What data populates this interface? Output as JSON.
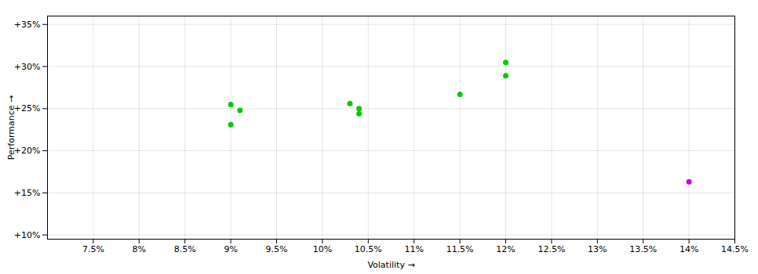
{
  "chart_data": {
    "type": "scatter",
    "xlabel": "Volatility",
    "ylabel": "Performance",
    "xlim": [
      0.07,
      0.145
    ],
    "ylim": [
      0.095,
      0.36
    ],
    "xticks": [
      {
        "value": 0.075,
        "label": "7.5%"
      },
      {
        "value": 0.08,
        "label": "8%"
      },
      {
        "value": 0.085,
        "label": "8.5%"
      },
      {
        "value": 0.09,
        "label": "9%"
      },
      {
        "value": 0.095,
        "label": "9.5%"
      },
      {
        "value": 0.1,
        "label": "10%"
      },
      {
        "value": 0.105,
        "label": "10.5%"
      },
      {
        "value": 0.11,
        "label": "11%"
      },
      {
        "value": 0.115,
        "label": "11.5%"
      },
      {
        "value": 0.12,
        "label": "12%"
      },
      {
        "value": 0.125,
        "label": "12.5%"
      },
      {
        "value": 0.13,
        "label": "13%"
      },
      {
        "value": 0.135,
        "label": "13.5%"
      },
      {
        "value": 0.14,
        "label": "14%"
      },
      {
        "value": 0.145,
        "label": "14.5%"
      }
    ],
    "yticks": [
      {
        "value": 0.1,
        "label": "+10%"
      },
      {
        "value": 0.15,
        "label": "+15%"
      },
      {
        "value": 0.2,
        "label": "+20%"
      },
      {
        "value": 0.25,
        "label": "+25%"
      },
      {
        "value": 0.3,
        "label": "+30%"
      },
      {
        "value": 0.35,
        "label": "+35%"
      }
    ],
    "grid": true,
    "series": [
      {
        "color": "#00cc00",
        "x": [
          0.09,
          0.091,
          0.09,
          0.103,
          0.104,
          0.104,
          0.115,
          0.12,
          0.12
        ],
        "values": [
          0.231,
          0.248,
          0.255,
          0.256,
          0.25,
          0.244,
          0.267,
          0.289,
          0.305
        ]
      },
      {
        "color": "#cc00cc",
        "x": [
          0.14
        ],
        "values": [
          0.163
        ]
      }
    ]
  }
}
